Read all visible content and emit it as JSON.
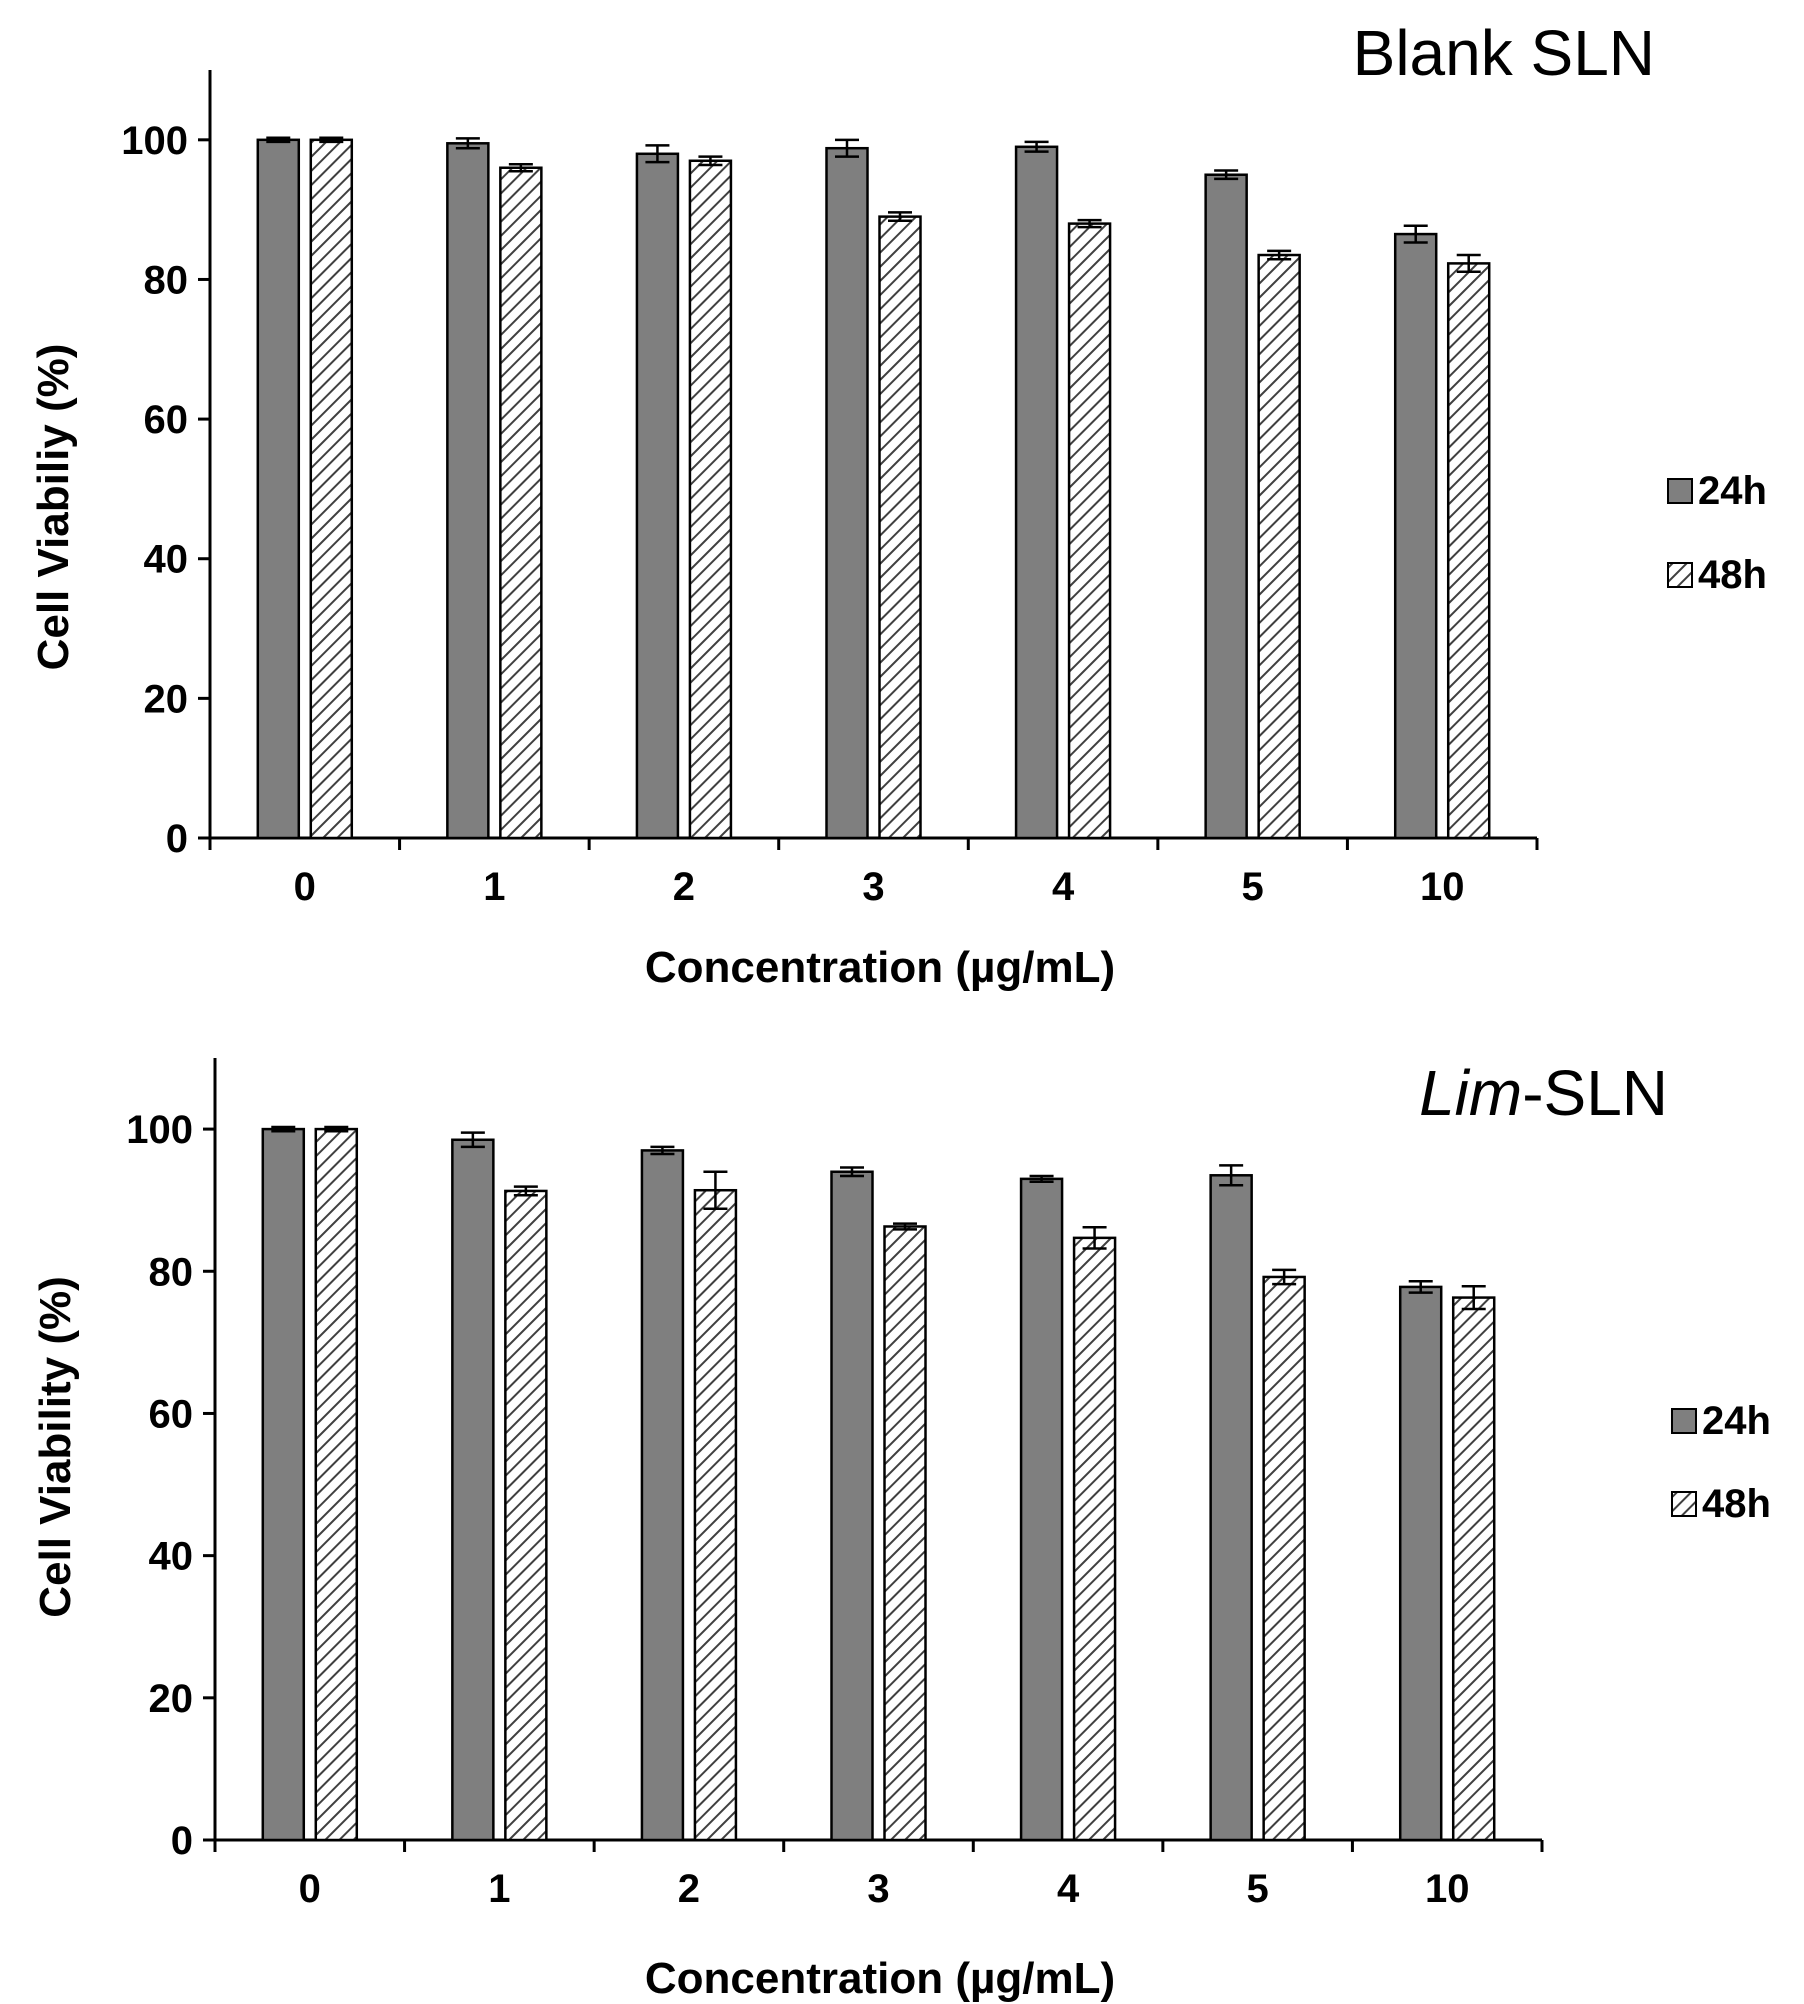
{
  "chart_data": [
    {
      "type": "bar",
      "title": "Blank SLN",
      "title_italic": "",
      "title_suffix": "Blank SLN",
      "xlabel": "Concentration (µg/mL)",
      "ylabel": "Cell Viabiliy (%)",
      "ylim": [
        0,
        110
      ],
      "yticks": [
        0,
        20,
        40,
        60,
        80,
        100
      ],
      "categories": [
        "0",
        "1",
        "2",
        "3",
        "4",
        "5",
        "10"
      ],
      "legend": {
        "position": "right"
      },
      "series": [
        {
          "name": "24h",
          "values": [
            100,
            99.5,
            98,
            98.8,
            99,
            95,
            86.5
          ],
          "errors": [
            0.3,
            0.7,
            1.2,
            1.2,
            0.7,
            0.6,
            1.2
          ]
        },
        {
          "name": "48h",
          "values": [
            100,
            96,
            97,
            89,
            88,
            83.5,
            82.3
          ],
          "errors": [
            0.3,
            0.5,
            0.6,
            0.6,
            0.5,
            0.6,
            1.2
          ]
        }
      ],
      "colors": {
        "24h": "#7f7f7f",
        "48h_stripe": "#404040"
      }
    },
    {
      "type": "bar",
      "title": "Lim-SLN",
      "title_italic": "Lim",
      "title_suffix": "-SLN",
      "xlabel": "Concentration (µg/mL)",
      "ylabel": "Cell Viability (%)",
      "ylim": [
        0,
        110
      ],
      "yticks": [
        0,
        20,
        40,
        60,
        80,
        100
      ],
      "categories": [
        "0",
        "1",
        "2",
        "3",
        "4",
        "5",
        "10"
      ],
      "legend": {
        "position": "right"
      },
      "series": [
        {
          "name": "24h",
          "values": [
            100,
            98.5,
            97,
            94,
            93,
            93.5,
            77.8
          ],
          "errors": [
            0.3,
            1.0,
            0.5,
            0.6,
            0.4,
            1.4,
            0.8
          ]
        },
        {
          "name": "48h",
          "values": [
            100,
            91.3,
            91.4,
            86.3,
            84.7,
            79.2,
            76.3
          ],
          "errors": [
            0.3,
            0.6,
            2.6,
            0.4,
            1.5,
            1.0,
            1.6
          ]
        }
      ],
      "colors": {
        "24h": "#7f7f7f",
        "48h_stripe": "#404040"
      }
    }
  ]
}
